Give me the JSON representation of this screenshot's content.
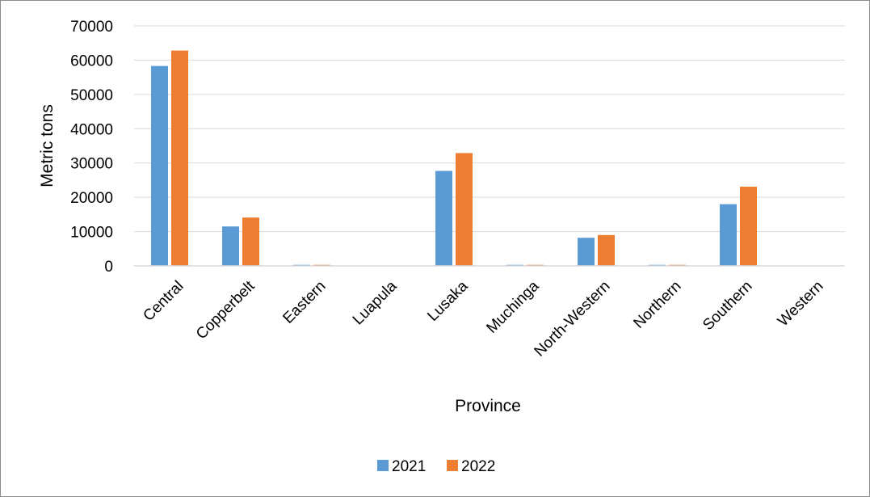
{
  "chart_data": {
    "type": "bar",
    "title": "",
    "xlabel": "Province",
    "ylabel": "Metric tons",
    "categories": [
      "Central",
      "Copperbelt",
      "Eastern",
      "Luapula",
      "Lusaka",
      "Muchinga",
      "North-Western",
      "Northern",
      "Southern",
      "Western"
    ],
    "series": [
      {
        "name": "2021",
        "color": "#5b9bd5",
        "values": [
          58300,
          11500,
          300,
          0,
          27700,
          300,
          8200,
          300,
          18000,
          0
        ]
      },
      {
        "name": "2022",
        "color": "#ed7d31",
        "values": [
          62800,
          14100,
          300,
          0,
          32900,
          300,
          9000,
          300,
          23100,
          0
        ]
      }
    ],
    "ylim": [
      0,
      70000
    ],
    "yticks": [
      "0",
      "10000",
      "20000",
      "30000",
      "40000",
      "50000",
      "60000",
      "70000"
    ],
    "grid": true,
    "legend": "bottom"
  }
}
